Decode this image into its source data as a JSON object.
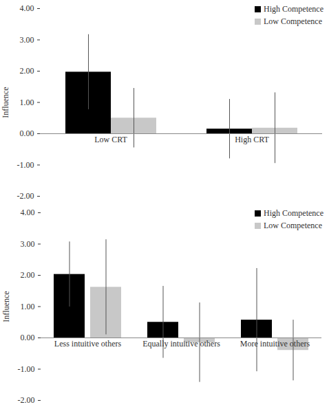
{
  "chart_data": [
    {
      "type": "bar",
      "y_label": "Influence",
      "categories": [
        "Low CRT",
        "High CRT"
      ],
      "series": [
        {
          "name": "High Competence",
          "color": "#000000",
          "values": [
            1.97,
            0.15
          ],
          "errors": [
            1.2,
            0.95
          ]
        },
        {
          "name": "Low Competence",
          "color": "#c8c8c8",
          "values": [
            0.5,
            0.18
          ],
          "errors": [
            0.95,
            1.13
          ]
        }
      ],
      "ylim": [
        -2,
        4
      ],
      "yticks": [
        {
          "value": -2,
          "label": "-2.00"
        },
        {
          "value": -1,
          "label": "-1.00"
        },
        {
          "value": 0,
          "label": "0.00"
        },
        {
          "value": 1,
          "label": "1.00"
        },
        {
          "value": 2,
          "label": "2.00"
        },
        {
          "value": 3,
          "label": "3.00"
        },
        {
          "value": 4,
          "label": "4.00"
        }
      ],
      "grid": false,
      "legend": "top-right"
    },
    {
      "type": "bar",
      "y_label": "Influence",
      "categories": [
        "Less intuitive others",
        "Equally intuitive others",
        "More intuitive others"
      ],
      "series": [
        {
          "name": "High Competence",
          "color": "#000000",
          "values": [
            2.03,
            0.5,
            0.57
          ],
          "errors": [
            1.04,
            1.15,
            1.65
          ]
        },
        {
          "name": "Low Competence",
          "color": "#c8c8c8",
          "values": [
            1.62,
            -0.15,
            -0.4
          ],
          "errors": [
            1.52,
            1.27,
            0.97
          ]
        }
      ],
      "ylim": [
        -2,
        4
      ],
      "yticks": [
        {
          "value": -2,
          "label": "-2.00"
        },
        {
          "value": -1,
          "label": "-1.00"
        },
        {
          "value": 0,
          "label": "0.00"
        },
        {
          "value": 1,
          "label": "1.00"
        },
        {
          "value": 2,
          "label": "2.00"
        },
        {
          "value": 3,
          "label": "3.00"
        },
        {
          "value": 4,
          "label": "4.00"
        }
      ],
      "grid": false,
      "legend": "top-right"
    }
  ]
}
